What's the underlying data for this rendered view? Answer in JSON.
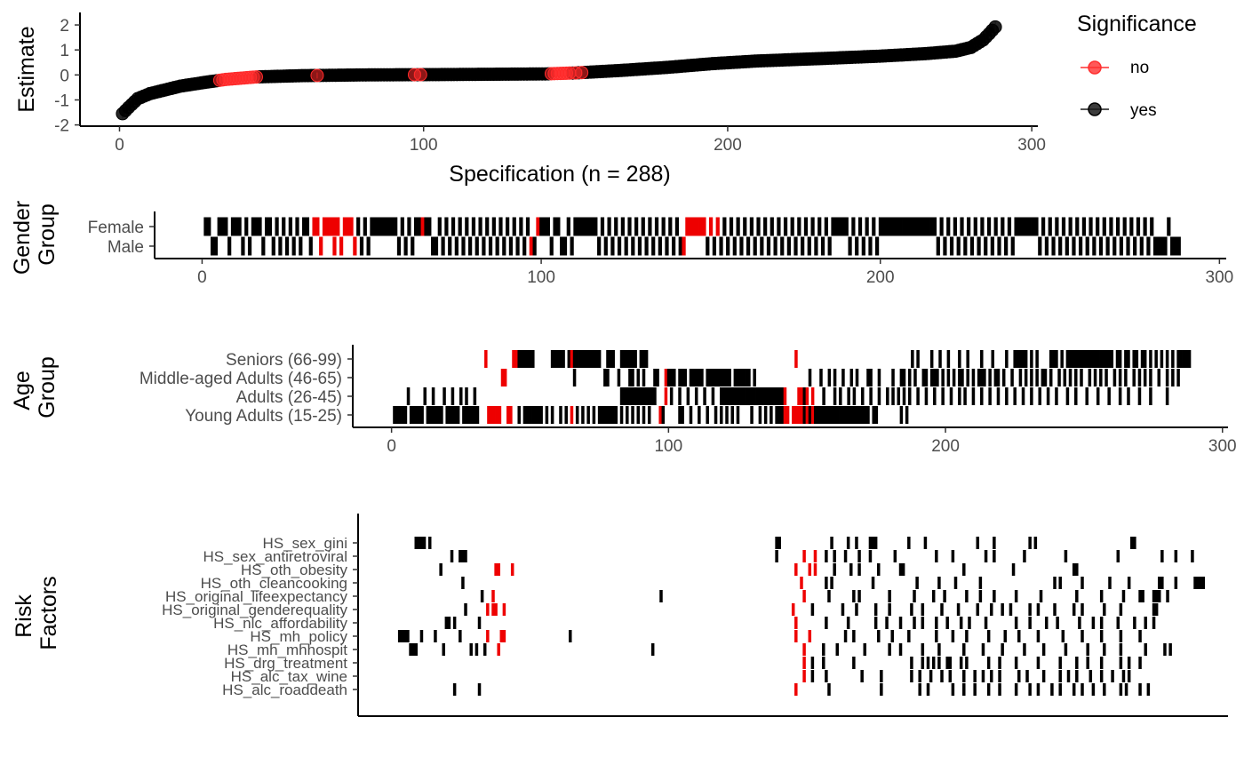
{
  "colors": {
    "no": "#ff2a2a",
    "yes": "#000000",
    "tile_no": "#ee0000",
    "tile_yes": "#000000"
  },
  "legend": {
    "title": "Significance",
    "items": [
      {
        "label": "no",
        "color": "#ff3030"
      },
      {
        "label": "yes",
        "color": "#1a1a1a"
      }
    ]
  },
  "chart_data": [
    {
      "id": "curve",
      "type": "scatter",
      "title": "",
      "ylabel": "Estimate",
      "xlabel": "Specification (n = 288)",
      "xlim": [
        -13,
        302
      ],
      "ylim": [
        -2.05,
        2.5
      ],
      "xticks": [
        "0",
        "100",
        "200",
        "300"
      ],
      "yticks": [
        "-2",
        "-1",
        "0",
        "1",
        "2"
      ],
      "n": 288,
      "estimate_knots": [
        [
          1,
          -1.55
        ],
        [
          3,
          -1.3
        ],
        [
          6,
          -0.95
        ],
        [
          10,
          -0.75
        ],
        [
          15,
          -0.6
        ],
        [
          20,
          -0.45
        ],
        [
          28,
          -0.3
        ],
        [
          35,
          -0.18
        ],
        [
          45,
          -0.08
        ],
        [
          60,
          -0.03
        ],
        [
          80,
          0.0
        ],
        [
          100,
          0.01
        ],
        [
          140,
          0.04
        ],
        [
          150,
          0.08
        ],
        [
          165,
          0.18
        ],
        [
          180,
          0.3
        ],
        [
          195,
          0.45
        ],
        [
          210,
          0.56
        ],
        [
          230,
          0.65
        ],
        [
          250,
          0.75
        ],
        [
          265,
          0.85
        ],
        [
          275,
          0.95
        ],
        [
          280,
          1.1
        ],
        [
          284,
          1.4
        ],
        [
          286,
          1.65
        ],
        [
          288,
          1.92
        ]
      ],
      "non_significant_specs": [
        33,
        34,
        35,
        36,
        37,
        38,
        39,
        40,
        41,
        42,
        43,
        44,
        45,
        65,
        97,
        99,
        142,
        143,
        144,
        145,
        146,
        147,
        148,
        150,
        152
      ],
      "legend": [
        "no",
        "yes"
      ]
    },
    {
      "id": "gender",
      "type": "heatmap",
      "ylabel": "Gender Group",
      "xlim": [
        -14,
        302
      ],
      "xticks": [
        "0",
        "100",
        "200",
        "300"
      ],
      "rows": [
        "Female",
        "Male"
      ],
      "row_specs": [
        [
          1,
          2,
          5,
          6,
          7,
          9,
          10,
          11,
          13,
          15,
          16,
          17,
          19,
          20,
          22,
          24,
          26,
          28,
          30,
          31,
          33,
          34,
          36,
          37,
          38,
          39,
          40,
          42,
          43,
          44,
          46,
          48,
          50,
          51,
          52,
          53,
          54,
          55,
          56,
          57,
          59,
          61,
          63,
          64,
          65,
          66,
          67,
          70,
          72,
          74,
          76,
          78,
          80,
          82,
          84,
          86,
          88,
          90,
          92,
          94,
          96,
          99,
          100,
          101,
          102,
          104,
          105,
          108,
          110,
          111,
          112,
          113,
          114,
          115,
          116,
          118,
          120,
          122,
          124,
          126,
          128,
          130,
          132,
          134,
          136,
          138,
          140,
          143,
          144,
          145,
          146,
          147,
          148,
          150,
          152,
          154,
          156,
          158,
          160,
          162,
          164,
          166,
          168,
          170,
          172,
          174,
          176,
          178,
          180,
          182,
          184,
          186,
          187,
          188,
          189,
          190,
          192,
          194,
          196,
          198,
          200,
          201,
          202,
          203,
          204,
          205,
          206,
          207,
          208,
          209,
          210,
          211,
          212,
          213,
          214,
          215,
          216,
          218,
          220,
          222,
          224,
          226,
          228,
          230,
          232,
          234,
          236,
          238,
          240,
          241,
          242,
          243,
          244,
          245,
          246,
          248,
          250,
          252,
          254,
          256,
          258,
          260,
          262,
          264,
          266,
          268,
          270,
          272,
          274,
          276,
          278,
          280,
          285
        ],
        [
          3,
          4,
          8,
          12,
          14,
          18,
          21,
          23,
          25,
          27,
          29,
          32,
          35,
          39,
          41,
          45,
          47,
          49,
          58,
          60,
          62,
          68,
          69,
          71,
          73,
          75,
          77,
          79,
          81,
          83,
          85,
          87,
          89,
          91,
          93,
          95,
          97,
          98,
          103,
          106,
          107,
          109,
          117,
          119,
          121,
          123,
          125,
          127,
          129,
          131,
          133,
          135,
          137,
          139,
          141,
          142,
          149,
          151,
          153,
          155,
          157,
          159,
          161,
          163,
          165,
          167,
          169,
          171,
          173,
          175,
          177,
          179,
          181,
          183,
          185,
          191,
          193,
          195,
          197,
          199,
          217,
          219,
          221,
          223,
          225,
          227,
          229,
          231,
          233,
          235,
          237,
          239,
          247,
          249,
          251,
          253,
          255,
          257,
          259,
          261,
          263,
          265,
          267,
          269,
          271,
          273,
          275,
          277,
          279,
          281,
          282,
          283,
          284,
          286,
          287,
          288
        ]
      ]
    },
    {
      "id": "age",
      "type": "heatmap",
      "ylabel": "Age Group",
      "xlim": [
        -14,
        302
      ],
      "xticks": [
        "0",
        "100",
        "200",
        "300"
      ],
      "rows": [
        "Seniors (66-99)",
        "Middle-aged Adults (46-65)",
        "Adults (26-45)",
        "Young Adults (15-25)"
      ],
      "row_specs": [
        [
          34,
          44,
          45,
          46,
          47,
          48,
          49,
          50,
          51,
          58,
          59,
          60,
          61,
          62,
          64,
          65,
          66,
          67,
          68,
          69,
          70,
          71,
          72,
          73,
          74,
          75,
          78,
          79,
          80,
          83,
          84,
          85,
          86,
          87,
          88,
          90,
          91,
          92,
          146,
          188,
          190,
          195,
          198,
          201,
          205,
          208,
          213,
          217,
          222,
          225,
          226,
          227,
          228,
          229,
          231,
          233,
          238,
          239,
          240,
          242,
          244,
          245,
          246,
          247,
          248,
          249,
          250,
          251,
          252,
          253,
          254,
          255,
          256,
          257,
          258,
          259,
          260,
          262,
          263,
          265,
          266,
          268,
          269,
          271,
          272,
          274,
          276,
          278,
          280,
          282,
          284,
          285,
          286,
          287,
          288
        ],
        [
          40,
          41,
          66,
          77,
          78,
          82,
          86,
          87,
          89,
          91,
          95,
          96,
          99,
          100,
          101,
          102,
          104,
          105,
          106,
          108,
          109,
          110,
          111,
          112,
          114,
          115,
          116,
          117,
          118,
          119,
          120,
          121,
          122,
          124,
          125,
          126,
          127,
          128,
          129,
          131,
          151,
          155,
          158,
          160,
          163,
          166,
          168,
          172,
          173,
          176,
          181,
          184,
          185,
          187,
          189,
          192,
          193,
          195,
          196,
          197,
          199,
          201,
          203,
          205,
          206,
          208,
          210,
          212,
          213,
          214,
          216,
          218,
          219,
          221,
          224,
          227,
          229,
          231,
          233,
          235,
          236,
          238,
          241,
          243,
          245,
          247,
          249,
          252,
          254,
          256,
          258,
          261,
          263,
          265,
          268,
          270,
          272,
          274,
          277,
          280,
          282,
          284
        ],
        [
          6,
          12,
          15,
          19,
          22,
          25,
          27,
          30,
          83,
          84,
          85,
          86,
          87,
          88,
          89,
          90,
          91,
          92,
          93,
          94,
          95,
          99,
          101,
          104,
          107,
          110,
          113,
          116,
          119,
          120,
          121,
          122,
          123,
          124,
          125,
          126,
          127,
          128,
          129,
          130,
          131,
          132,
          133,
          134,
          135,
          136,
          137,
          138,
          139,
          140,
          141,
          142,
          147,
          148,
          149,
          150,
          152,
          156,
          160,
          162,
          165,
          167,
          170,
          173,
          176,
          179,
          181,
          183,
          185,
          187,
          190,
          193,
          196,
          199,
          202,
          205,
          207,
          210,
          213,
          216,
          219,
          222,
          225,
          228,
          231,
          234,
          237,
          240,
          244,
          247,
          251,
          255,
          259,
          263,
          266,
          270,
          274,
          280
        ],
        [
          1,
          2,
          3,
          4,
          5,
          7,
          8,
          9,
          10,
          11,
          13,
          14,
          15,
          16,
          17,
          18,
          20,
          21,
          22,
          23,
          24,
          26,
          27,
          28,
          29,
          30,
          31,
          35,
          36,
          37,
          38,
          39,
          42,
          43,
          46,
          48,
          49,
          50,
          51,
          52,
          53,
          54,
          56,
          58,
          61,
          63,
          65,
          67,
          69,
          71,
          73,
          75,
          76,
          77,
          78,
          79,
          80,
          81,
          83,
          85,
          87,
          89,
          91,
          93,
          97,
          98,
          104,
          105,
          108,
          111,
          114,
          117,
          119,
          121,
          123,
          125,
          130,
          133,
          135,
          137,
          139,
          140,
          141,
          142,
          143,
          145,
          146,
          147,
          148,
          149,
          150,
          151,
          152,
          153,
          154,
          155,
          156,
          157,
          158,
          159,
          160,
          161,
          162,
          163,
          164,
          165,
          166,
          167,
          168,
          169,
          170,
          171,
          172,
          174,
          175,
          184,
          186
        ]
      ]
    },
    {
      "id": "risk",
      "type": "heatmap",
      "ylabel": "Risk Factors",
      "xlim": [
        -14,
        302
      ],
      "rows": [
        "HS_sex_gini",
        "HS_sex_antiretroviral",
        "HS_oth_obesity",
        "HS_oth_cleancooking",
        "HS_original_lifeexpectancy",
        "HS_original_genderequality",
        "HS_nlc_affordability",
        "HS_mh_policy",
        "HS_mh_mhhospit",
        "HS_drg_treatment",
        "HS_alc_tax_wine",
        "HS_alc_roaddeath"
      ],
      "row_specs": [
        [
          7,
          8,
          9,
          10,
          12,
          138,
          139,
          158,
          164,
          167,
          172,
          173,
          174,
          186,
          192,
          211,
          217,
          230,
          232,
          267,
          268
        ],
        [
          20,
          23,
          24,
          25,
          138,
          148,
          152,
          156,
          159,
          163,
          168,
          172,
          181,
          196,
          202,
          214,
          217,
          228,
          243,
          262,
          278,
          283,
          289
        ],
        [
          16,
          36,
          37,
          42,
          145,
          150,
          152,
          159,
          165,
          168,
          175,
          183,
          184,
          206,
          224,
          246,
          247
        ],
        [
          24,
          147,
          156,
          158,
          173,
          189,
          197,
          203,
          212,
          239,
          241,
          249,
          259,
          266,
          277,
          278,
          283,
          290,
          291,
          292,
          293
        ],
        [
          31,
          35,
          96,
          148,
          157,
          166,
          168,
          179,
          188,
          195,
          199,
          207,
          212,
          217,
          225,
          234,
          247,
          256,
          264,
          270,
          271,
          275,
          276,
          277,
          280
        ],
        [
          25,
          33,
          35,
          36,
          39,
          144,
          151,
          162,
          167,
          174,
          179,
          187,
          191,
          198,
          204,
          211,
          216,
          220,
          223,
          230,
          233,
          239,
          246,
          249,
          257,
          263,
          275,
          276
        ],
        [
          18,
          19,
          21,
          30,
          145,
          156,
          164,
          174,
          178,
          183,
          188,
          191,
          196,
          200,
          205,
          208,
          214,
          225,
          230,
          236,
          240,
          248,
          253,
          256,
          262,
          268,
          272,
          275
        ],
        [
          1,
          2,
          3,
          4,
          9,
          14,
          23,
          33,
          38,
          39,
          63,
          145,
          150,
          163,
          166,
          175,
          180,
          186,
          196,
          202,
          207,
          215,
          221,
          226,
          233,
          242,
          249,
          256,
          263,
          270
        ],
        [
          5,
          6,
          7,
          17,
          27,
          29,
          32,
          37,
          93,
          148,
          155,
          160,
          170,
          179,
          183,
          191,
          197,
          206,
          213,
          220,
          228,
          235,
          243,
          251,
          257,
          263,
          272,
          279,
          281
        ],
        [
          148,
          151,
          155,
          166,
          187,
          191,
          193,
          195,
          197,
          200,
          201,
          205,
          207,
          215,
          219,
          225,
          233,
          241,
          247,
          251,
          256,
          263,
          266,
          270
        ],
        [
          148,
          151,
          156,
          169,
          176,
          187,
          190,
          194,
          198,
          201,
          206,
          210,
          213,
          216,
          219,
          226,
          229,
          235,
          241,
          244,
          247,
          252,
          256,
          260,
          264,
          266
        ],
        [
          21,
          30,
          145,
          157,
          176,
          190,
          193,
          202,
          206,
          210,
          215,
          219,
          225,
          230,
          233,
          238,
          241,
          246,
          249,
          253,
          257,
          263,
          265,
          270,
          273
        ]
      ]
    }
  ]
}
